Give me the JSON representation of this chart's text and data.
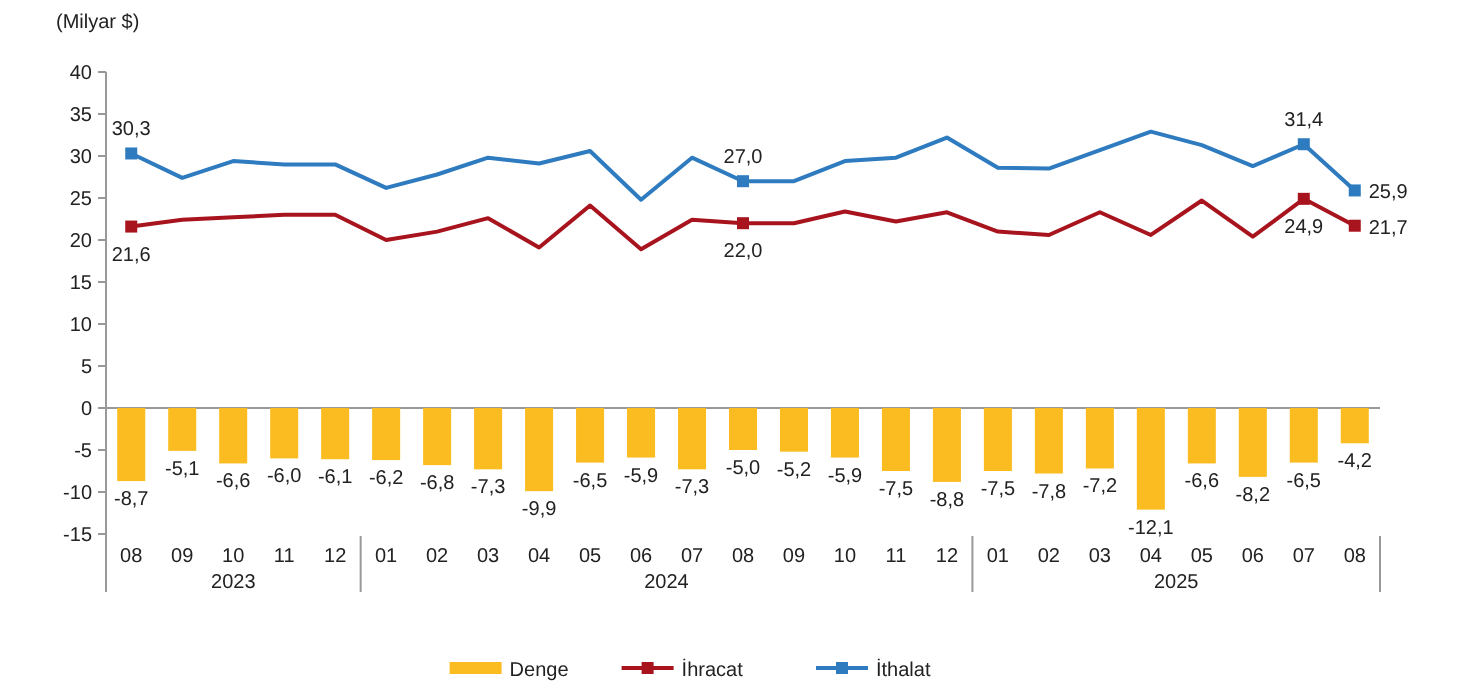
{
  "chart_data": {
    "type": "bar",
    "ylabel": "(Milyar $)",
    "categories": [
      "08",
      "09",
      "10",
      "11",
      "12",
      "01",
      "02",
      "03",
      "04",
      "05",
      "06",
      "07",
      "08",
      "09",
      "10",
      "11",
      "12",
      "01",
      "02",
      "03",
      "04",
      "05",
      "06",
      "07",
      "08"
    ],
    "annotations": [
      "2023",
      "2024",
      "2025"
    ],
    "ylim": [
      -15,
      40
    ],
    "yticks": [
      -15,
      -10,
      -5,
      0,
      5,
      10,
      15,
      20,
      25,
      30,
      35,
      40
    ],
    "legend": "bottom",
    "series": [
      {
        "name": "Denge",
        "color": "#fbbc22",
        "values": [
          -8.7,
          -5.1,
          -6.6,
          -6.0,
          -6.1,
          -6.2,
          -6.8,
          -7.3,
          -9.9,
          -6.5,
          -5.9,
          -7.3,
          -5.0,
          -5.2,
          -5.9,
          -7.5,
          -8.8,
          -7.5,
          -7.8,
          -7.2,
          -12.1,
          -6.6,
          -8.2,
          -6.5,
          -4.2
        ],
        "value_labels": [
          "-8,7",
          "-5,1",
          "-6,6",
          "-6,0",
          "-6,1",
          "-6,2",
          "-6,8",
          "-7,3",
          "-9,9",
          "-6,5",
          "-5,9",
          "-7,3",
          "-5,0",
          "-5,2",
          "-5,9",
          "-7,5",
          "-8,8",
          "-7,5",
          "-7,8",
          "-7,2",
          "-12,1",
          "-6,6",
          "-8,2",
          "-6,5",
          "-4,2"
        ]
      },
      {
        "name": "İhracat",
        "type": "line",
        "color": "#a8141e",
        "values": [
          21.6,
          22.4,
          22.7,
          23.0,
          23.0,
          20.0,
          21.0,
          22.6,
          19.1,
          24.1,
          18.9,
          22.4,
          22.0,
          22.0,
          23.4,
          22.2,
          23.3,
          21.0,
          20.6,
          23.3,
          20.6,
          24.7,
          20.4,
          24.9,
          21.7
        ],
        "value_labels": [
          "21,6",
          null,
          null,
          null,
          null,
          null,
          null,
          null,
          null,
          null,
          null,
          null,
          "22,0",
          null,
          null,
          null,
          null,
          null,
          null,
          null,
          null,
          null,
          null,
          "24,9",
          "21,7"
        ]
      },
      {
        "name": "İthalat",
        "type": "line",
        "color": "#2e7bbf",
        "values": [
          30.3,
          27.4,
          29.4,
          29.0,
          29.0,
          26.2,
          27.8,
          29.8,
          29.1,
          30.6,
          24.8,
          29.8,
          27.0,
          27.0,
          29.4,
          29.8,
          32.2,
          28.6,
          28.5,
          30.7,
          32.9,
          31.3,
          28.8,
          31.4,
          25.9
        ],
        "value_labels": [
          "30,3",
          null,
          null,
          null,
          null,
          null,
          null,
          null,
          null,
          null,
          null,
          null,
          "27,0",
          null,
          null,
          null,
          null,
          null,
          null,
          null,
          null,
          null,
          null,
          "31,4",
          "25,9"
        ]
      }
    ]
  }
}
